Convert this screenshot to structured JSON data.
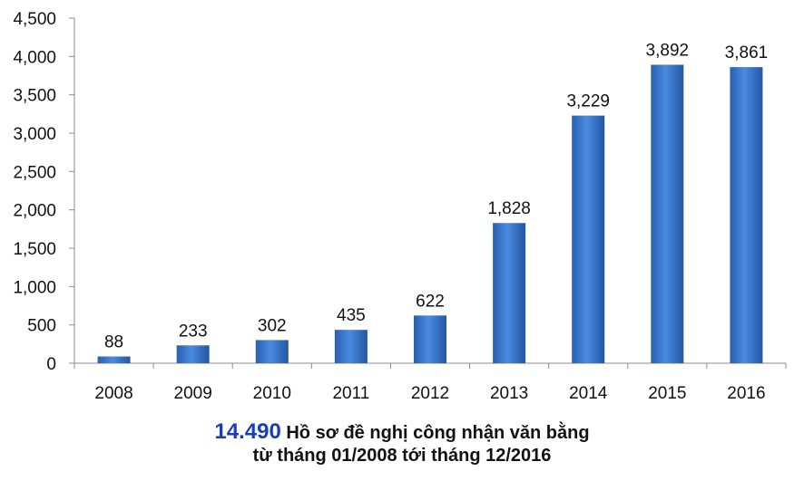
{
  "chart_data": {
    "type": "bar",
    "categories": [
      "2008",
      "2009",
      "2010",
      "2011",
      "2012",
      "2013",
      "2014",
      "2015",
      "2016"
    ],
    "values": [
      88,
      233,
      302,
      435,
      622,
      1828,
      3229,
      3892,
      3861
    ],
    "data_labels": [
      "88",
      "233",
      "302",
      "435",
      "622",
      "1,828",
      "3,229",
      "3,892",
      "3,861"
    ],
    "ylim": [
      0,
      4500
    ],
    "yticks": [
      0,
      500,
      1000,
      1500,
      2000,
      2500,
      3000,
      3500,
      4000,
      4500
    ],
    "ytick_labels": [
      "0",
      "500",
      "1,000",
      "1,500",
      "2,000",
      "2,500",
      "3,000",
      "3,500",
      "4,000",
      "4,500"
    ],
    "grid": false,
    "bar_color": "#2f6cc0",
    "bar_color_light": "#4f8ee0"
  },
  "caption": {
    "highlight": "14.490",
    "line1": " Hồ sơ đề nghị công nhận văn bằng",
    "line2": "từ tháng 01/2008 tới tháng 12/2016"
  }
}
